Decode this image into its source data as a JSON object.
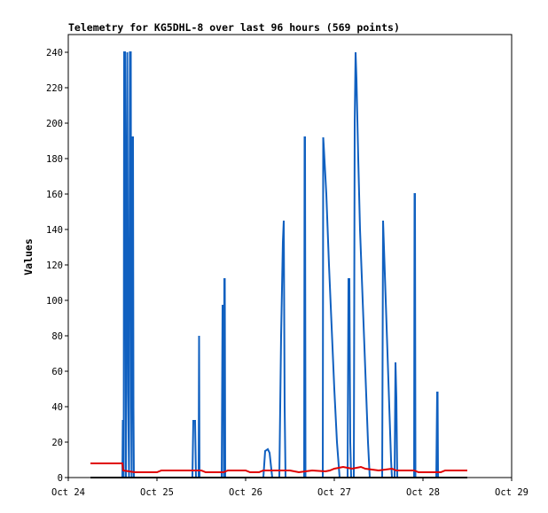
{
  "chart_data": {
    "type": "line",
    "title": "Telemetry for KG5DHL-8 over last 96 hours (569 points)",
    "xlabel": "",
    "ylabel": "Values",
    "xlim": [
      0,
      5
    ],
    "ylim": [
      0,
      250
    ],
    "x_ticks": [
      {
        "value": 0,
        "label": "Oct 24"
      },
      {
        "value": 1,
        "label": "Oct 25"
      },
      {
        "value": 2,
        "label": "Oct 26"
      },
      {
        "value": 3,
        "label": "Oct 27"
      },
      {
        "value": 4,
        "label": "Oct 28"
      },
      {
        "value": 5,
        "label": "Oct 29"
      }
    ],
    "y_ticks": [
      0,
      20,
      40,
      60,
      80,
      100,
      120,
      140,
      160,
      180,
      200,
      220,
      240
    ],
    "grid": false,
    "legend": "none",
    "series": [
      {
        "color": "#1060c0",
        "points": [
          [
            0.61,
            0
          ],
          [
            0.615,
            32
          ],
          [
            0.62,
            32
          ],
          [
            0.625,
            0
          ],
          [
            0.63,
            240
          ],
          [
            0.64,
            240
          ],
          [
            0.645,
            120
          ],
          [
            0.65,
            0
          ],
          [
            0.665,
            240
          ],
          [
            0.675,
            48
          ],
          [
            0.685,
            0
          ],
          [
            0.69,
            122
          ],
          [
            0.695,
            240
          ],
          [
            0.705,
            240
          ],
          [
            0.71,
            40
          ],
          [
            0.715,
            0
          ],
          [
            0.72,
            192
          ],
          [
            0.73,
            192
          ],
          [
            0.735,
            40
          ],
          [
            0.74,
            0
          ],
          [
            1.4,
            0
          ],
          [
            1.41,
            32
          ],
          [
            1.43,
            32
          ],
          [
            1.44,
            0
          ],
          [
            1.47,
            0
          ],
          [
            1.475,
            80
          ],
          [
            1.48,
            0
          ],
          [
            1.73,
            0
          ],
          [
            1.74,
            97
          ],
          [
            1.75,
            97
          ],
          [
            1.755,
            0
          ],
          [
            1.76,
            112
          ],
          [
            1.765,
            112
          ],
          [
            1.77,
            0
          ],
          [
            2.2,
            0
          ],
          [
            2.22,
            15
          ],
          [
            2.25,
            16
          ],
          [
            2.27,
            14
          ],
          [
            2.3,
            0
          ],
          [
            2.38,
            0
          ],
          [
            2.4,
            80
          ],
          [
            2.42,
            133
          ],
          [
            2.43,
            145
          ],
          [
            2.44,
            40
          ],
          [
            2.45,
            0
          ],
          [
            2.66,
            0
          ],
          [
            2.665,
            192
          ],
          [
            2.67,
            192
          ],
          [
            2.675,
            0
          ],
          [
            2.87,
            0
          ],
          [
            2.875,
            192
          ],
          [
            2.88,
            188
          ],
          [
            2.91,
            160
          ],
          [
            2.94,
            120
          ],
          [
            2.97,
            85
          ],
          [
            3.0,
            50
          ],
          [
            3.03,
            20
          ],
          [
            3.06,
            0
          ],
          [
            3.15,
            0
          ],
          [
            3.16,
            112
          ],
          [
            3.17,
            112
          ],
          [
            3.18,
            20
          ],
          [
            3.19,
            0
          ],
          [
            3.22,
            0
          ],
          [
            3.23,
            200
          ],
          [
            3.24,
            240
          ],
          [
            3.25,
            225
          ],
          [
            3.27,
            180
          ],
          [
            3.29,
            140
          ],
          [
            3.32,
            100
          ],
          [
            3.35,
            60
          ],
          [
            3.38,
            20
          ],
          [
            3.4,
            0
          ],
          [
            3.54,
            0
          ],
          [
            3.55,
            145
          ],
          [
            3.56,
            130
          ],
          [
            3.58,
            100
          ],
          [
            3.6,
            70
          ],
          [
            3.62,
            40
          ],
          [
            3.64,
            10
          ],
          [
            3.65,
            0
          ],
          [
            3.68,
            0
          ],
          [
            3.69,
            65
          ],
          [
            3.7,
            45
          ],
          [
            3.71,
            0
          ],
          [
            3.9,
            0
          ],
          [
            3.905,
            160
          ],
          [
            3.91,
            160
          ],
          [
            3.915,
            0
          ],
          [
            4.15,
            0
          ],
          [
            4.16,
            48
          ],
          [
            4.165,
            48
          ],
          [
            4.17,
            0
          ]
        ]
      },
      {
        "color": "#e00000",
        "points": [
          [
            0.25,
            8
          ],
          [
            0.61,
            8
          ],
          [
            0.62,
            4
          ],
          [
            0.75,
            3
          ],
          [
            1.0,
            3
          ],
          [
            1.05,
            4
          ],
          [
            1.5,
            4
          ],
          [
            1.55,
            3
          ],
          [
            1.75,
            3
          ],
          [
            1.8,
            4
          ],
          [
            2.0,
            4
          ],
          [
            2.05,
            3
          ],
          [
            2.15,
            3
          ],
          [
            2.2,
            4
          ],
          [
            2.5,
            4
          ],
          [
            2.6,
            3
          ],
          [
            2.75,
            4
          ],
          [
            2.9,
            3.5
          ],
          [
            2.95,
            4
          ],
          [
            3.0,
            5
          ],
          [
            3.1,
            6
          ],
          [
            3.2,
            5
          ],
          [
            3.3,
            6
          ],
          [
            3.35,
            5
          ],
          [
            3.5,
            4
          ],
          [
            3.65,
            5
          ],
          [
            3.7,
            4
          ],
          [
            3.9,
            4
          ],
          [
            3.95,
            3
          ],
          [
            4.2,
            3
          ],
          [
            4.25,
            4
          ],
          [
            4.5,
            4
          ]
        ]
      },
      {
        "color": "#000000",
        "points": [
          [
            0.25,
            0
          ],
          [
            4.5,
            0
          ]
        ]
      }
    ]
  }
}
